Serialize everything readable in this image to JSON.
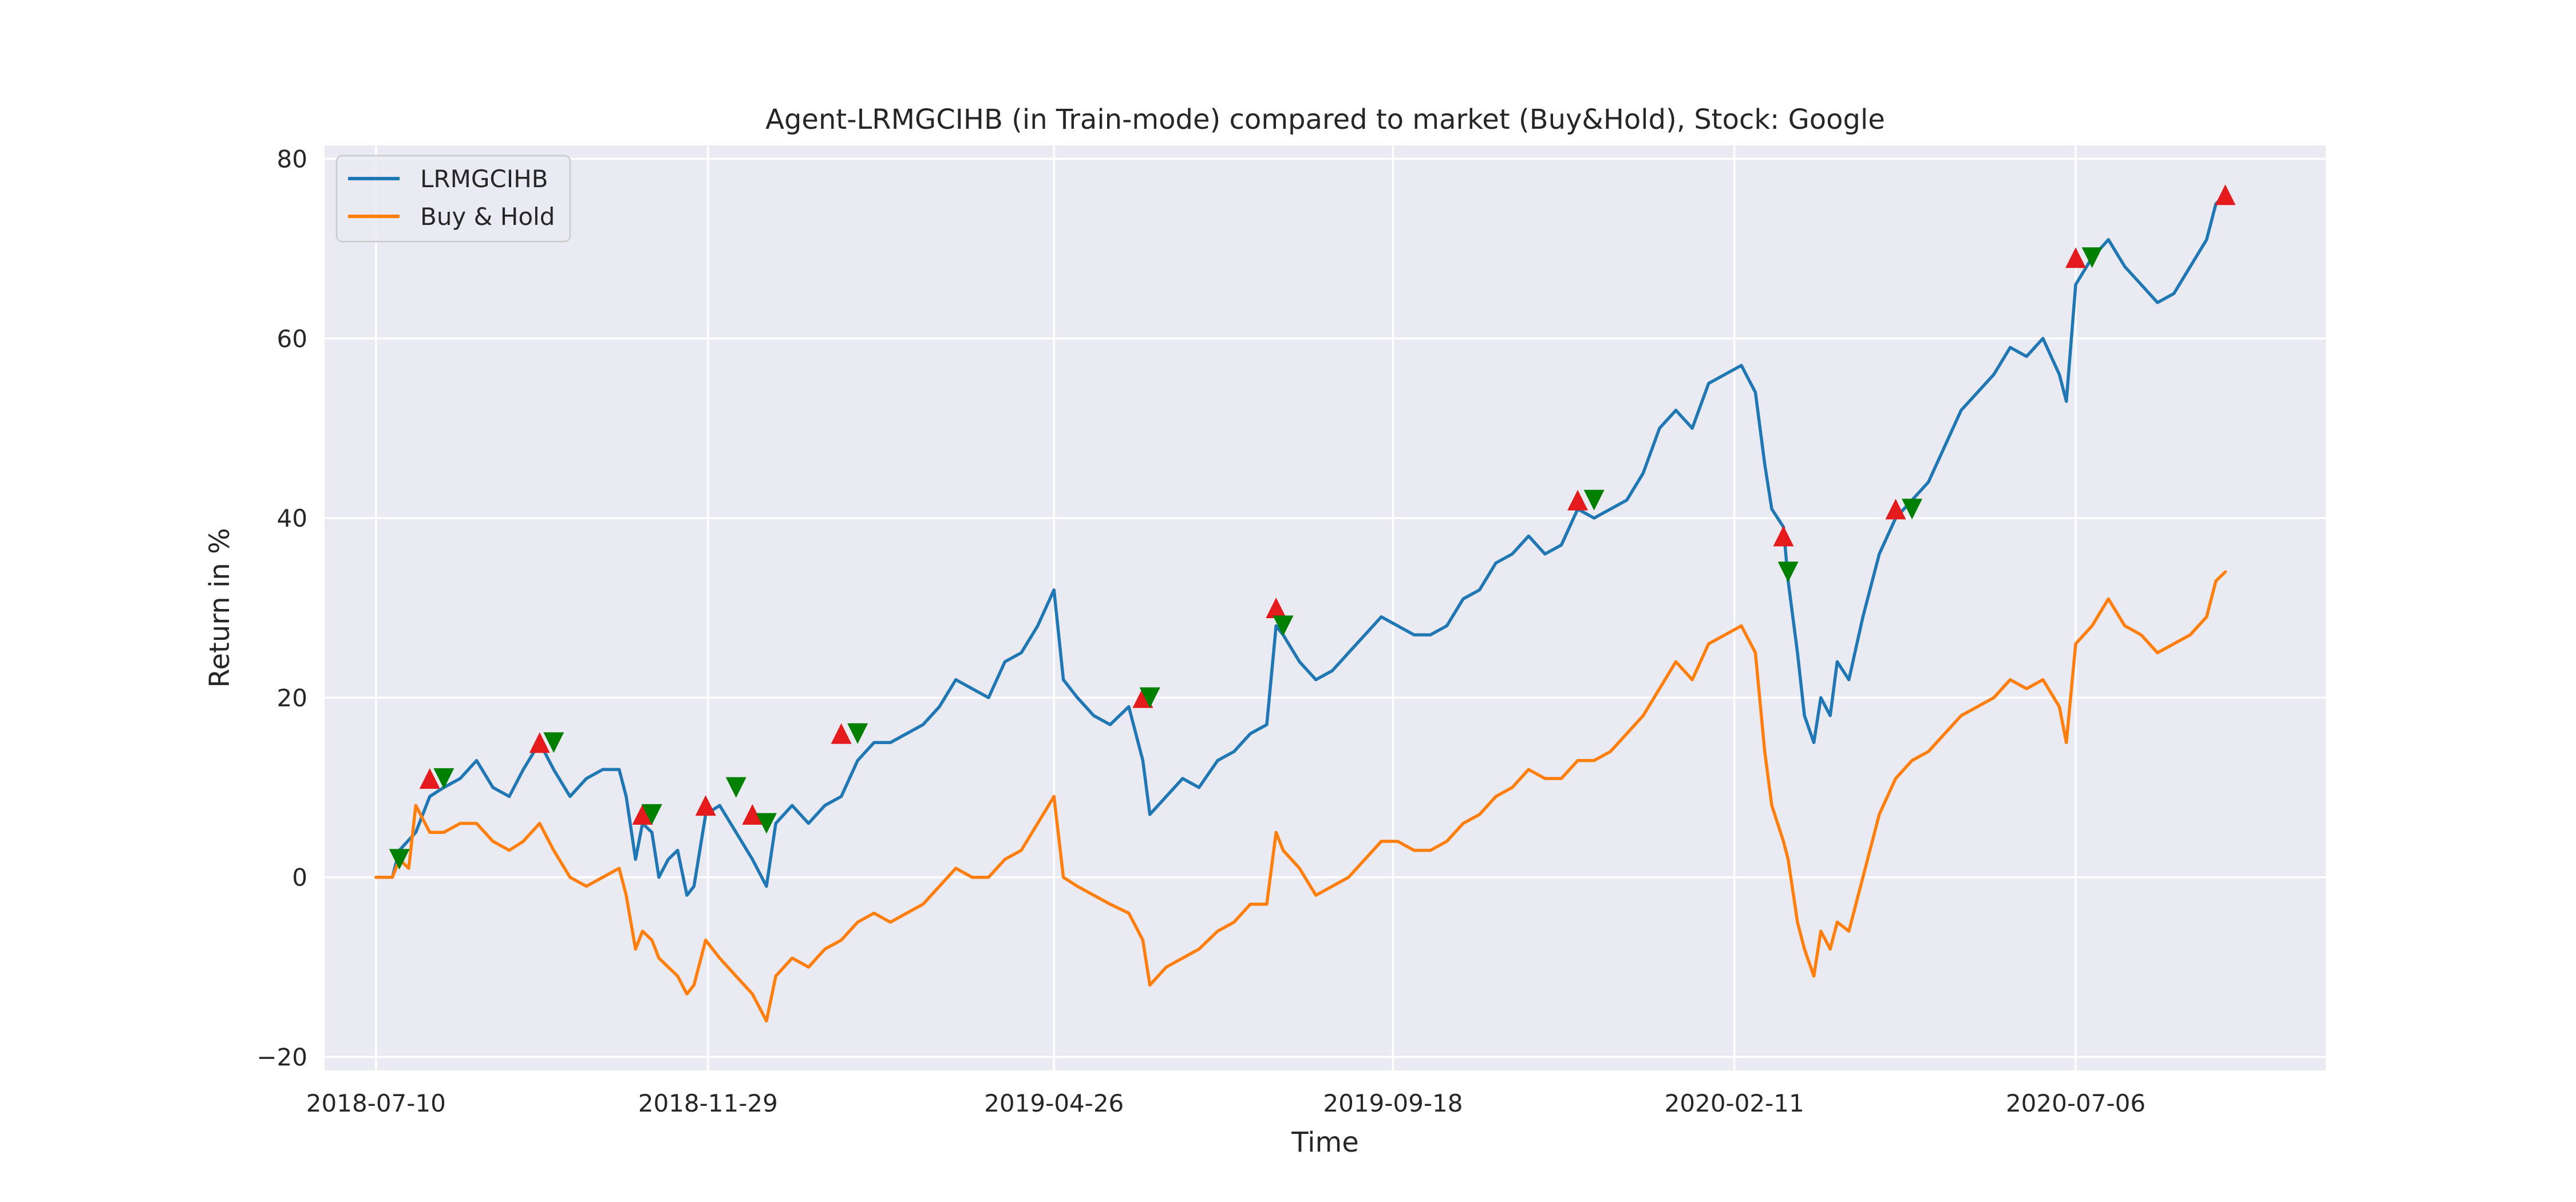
{
  "chart_data": {
    "type": "line",
    "title": "Agent-LRMGCIHB (in Train-mode) compared to market (Buy&Hold), Stock: Google",
    "xlabel": "Time",
    "ylabel": "Return in %",
    "x_tick_labels": [
      "2018-07-10",
      "2018-11-29",
      "2019-04-26",
      "2019-09-18",
      "2020-02-11",
      "2020-07-06"
    ],
    "y_ticks": [
      -20,
      0,
      20,
      40,
      60,
      80
    ],
    "xlim": [
      "2018-06-18",
      "2020-10-21"
    ],
    "ylim": [
      -21.5,
      81.5
    ],
    "grid": true,
    "legend_position": "upper left",
    "colors": {
      "LRMGCIHB": "#1f77b4",
      "Buy & Hold": "#ff7f0e",
      "buy_marker": "#e41a1c",
      "sell_marker": "#008000",
      "background": "#eaeaf2"
    },
    "series": [
      {
        "name": "LRMGCIHB",
        "points": [
          [
            "2018-07-10",
            0
          ],
          [
            "2018-07-17",
            0
          ],
          [
            "2018-07-20",
            3
          ],
          [
            "2018-07-27",
            5
          ],
          [
            "2018-08-02",
            9
          ],
          [
            "2018-08-08",
            10
          ],
          [
            "2018-08-15",
            11
          ],
          [
            "2018-08-22",
            13
          ],
          [
            "2018-08-29",
            10
          ],
          [
            "2018-09-05",
            9
          ],
          [
            "2018-09-11",
            12
          ],
          [
            "2018-09-18",
            15
          ],
          [
            "2018-09-24",
            12
          ],
          [
            "2018-10-01",
            9
          ],
          [
            "2018-10-08",
            11
          ],
          [
            "2018-10-15",
            12
          ],
          [
            "2018-10-22",
            12
          ],
          [
            "2018-10-25",
            9
          ],
          [
            "2018-10-29",
            2
          ],
          [
            "2018-11-01",
            6
          ],
          [
            "2018-11-05",
            5
          ],
          [
            "2018-11-08",
            0
          ],
          [
            "2018-11-12",
            2
          ],
          [
            "2018-11-16",
            3
          ],
          [
            "2018-11-20",
            -2
          ],
          [
            "2018-11-23",
            -1
          ],
          [
            "2018-11-28",
            7
          ],
          [
            "2018-12-04",
            8
          ],
          [
            "2018-12-11",
            5
          ],
          [
            "2018-12-18",
            2
          ],
          [
            "2018-12-24",
            -1
          ],
          [
            "2018-12-28",
            6
          ],
          [
            "2019-01-04",
            8
          ],
          [
            "2019-01-11",
            6
          ],
          [
            "2019-01-18",
            8
          ],
          [
            "2019-01-25",
            9
          ],
          [
            "2019-02-01",
            13
          ],
          [
            "2019-02-08",
            15
          ],
          [
            "2019-02-15",
            15
          ],
          [
            "2019-02-22",
            16
          ],
          [
            "2019-03-01",
            17
          ],
          [
            "2019-03-08",
            19
          ],
          [
            "2019-03-15",
            22
          ],
          [
            "2019-03-22",
            21
          ],
          [
            "2019-03-29",
            20
          ],
          [
            "2019-04-05",
            24
          ],
          [
            "2019-04-12",
            25
          ],
          [
            "2019-04-19",
            28
          ],
          [
            "2019-04-26",
            32
          ],
          [
            "2019-04-30",
            22
          ],
          [
            "2019-05-06",
            20
          ],
          [
            "2019-05-13",
            18
          ],
          [
            "2019-05-20",
            17
          ],
          [
            "2019-05-28",
            19
          ],
          [
            "2019-06-03",
            13
          ],
          [
            "2019-06-06",
            7
          ],
          [
            "2019-06-13",
            9
          ],
          [
            "2019-06-20",
            11
          ],
          [
            "2019-06-27",
            10
          ],
          [
            "2019-07-05",
            13
          ],
          [
            "2019-07-12",
            14
          ],
          [
            "2019-07-19",
            16
          ],
          [
            "2019-07-26",
            17
          ],
          [
            "2019-07-30",
            28
          ],
          [
            "2019-08-02",
            27
          ],
          [
            "2019-08-09",
            24
          ],
          [
            "2019-08-16",
            22
          ],
          [
            "2019-08-23",
            23
          ],
          [
            "2019-08-30",
            25
          ],
          [
            "2019-09-06",
            27
          ],
          [
            "2019-09-13",
            29
          ],
          [
            "2019-09-20",
            28
          ],
          [
            "2019-09-27",
            27
          ],
          [
            "2019-10-04",
            27
          ],
          [
            "2019-10-11",
            28
          ],
          [
            "2019-10-18",
            31
          ],
          [
            "2019-10-25",
            32
          ],
          [
            "2019-11-01",
            35
          ],
          [
            "2019-11-08",
            36
          ],
          [
            "2019-11-15",
            38
          ],
          [
            "2019-11-22",
            36
          ],
          [
            "2019-11-29",
            37
          ],
          [
            "2019-12-06",
            41
          ],
          [
            "2019-12-13",
            40
          ],
          [
            "2019-12-20",
            41
          ],
          [
            "2019-12-27",
            42
          ],
          [
            "2020-01-03",
            45
          ],
          [
            "2020-01-10",
            50
          ],
          [
            "2020-01-17",
            52
          ],
          [
            "2020-01-24",
            50
          ],
          [
            "2020-01-31",
            55
          ],
          [
            "2020-02-07",
            56
          ],
          [
            "2020-02-14",
            57
          ],
          [
            "2020-02-20",
            54
          ],
          [
            "2020-02-24",
            46
          ],
          [
            "2020-02-27",
            41
          ],
          [
            "2020-03-03",
            39
          ],
          [
            "2020-03-05",
            33
          ],
          [
            "2020-03-09",
            25
          ],
          [
            "2020-03-12",
            18
          ],
          [
            "2020-03-16",
            15
          ],
          [
            "2020-03-19",
            20
          ],
          [
            "2020-03-23",
            18
          ],
          [
            "2020-03-26",
            24
          ],
          [
            "2020-03-31",
            22
          ],
          [
            "2020-04-06",
            29
          ],
          [
            "2020-04-13",
            36
          ],
          [
            "2020-04-20",
            40
          ],
          [
            "2020-04-27",
            42
          ],
          [
            "2020-05-04",
            44
          ],
          [
            "2020-05-11",
            48
          ],
          [
            "2020-05-18",
            52
          ],
          [
            "2020-05-25",
            54
          ],
          [
            "2020-06-01",
            56
          ],
          [
            "2020-06-08",
            59
          ],
          [
            "2020-06-15",
            58
          ],
          [
            "2020-06-22",
            60
          ],
          [
            "2020-06-29",
            56
          ],
          [
            "2020-07-02",
            53
          ],
          [
            "2020-07-06",
            66
          ],
          [
            "2020-07-13",
            69
          ],
          [
            "2020-07-20",
            71
          ],
          [
            "2020-07-27",
            68
          ],
          [
            "2020-08-03",
            66
          ],
          [
            "2020-08-10",
            64
          ],
          [
            "2020-08-17",
            65
          ],
          [
            "2020-08-24",
            68
          ],
          [
            "2020-08-31",
            71
          ],
          [
            "2020-09-04",
            75
          ],
          [
            "2020-09-08",
            76
          ]
        ]
      },
      {
        "name": "Buy & Hold",
        "points": [
          [
            "2018-07-10",
            0
          ],
          [
            "2018-07-17",
            0
          ],
          [
            "2018-07-20",
            2
          ],
          [
            "2018-07-24",
            1
          ],
          [
            "2018-07-27",
            8
          ],
          [
            "2018-08-02",
            5
          ],
          [
            "2018-08-08",
            5
          ],
          [
            "2018-08-15",
            6
          ],
          [
            "2018-08-22",
            6
          ],
          [
            "2018-08-29",
            4
          ],
          [
            "2018-09-05",
            3
          ],
          [
            "2018-09-11",
            4
          ],
          [
            "2018-09-18",
            6
          ],
          [
            "2018-09-24",
            3
          ],
          [
            "2018-10-01",
            0
          ],
          [
            "2018-10-08",
            -1
          ],
          [
            "2018-10-15",
            0
          ],
          [
            "2018-10-22",
            1
          ],
          [
            "2018-10-25",
            -2
          ],
          [
            "2018-10-29",
            -8
          ],
          [
            "2018-11-01",
            -6
          ],
          [
            "2018-11-05",
            -7
          ],
          [
            "2018-11-08",
            -9
          ],
          [
            "2018-11-12",
            -10
          ],
          [
            "2018-11-16",
            -11
          ],
          [
            "2018-11-20",
            -13
          ],
          [
            "2018-11-23",
            -12
          ],
          [
            "2018-11-28",
            -7
          ],
          [
            "2018-12-04",
            -9
          ],
          [
            "2018-12-11",
            -11
          ],
          [
            "2018-12-18",
            -13
          ],
          [
            "2018-12-24",
            -16
          ],
          [
            "2018-12-28",
            -11
          ],
          [
            "2019-01-04",
            -9
          ],
          [
            "2019-01-11",
            -10
          ],
          [
            "2019-01-18",
            -8
          ],
          [
            "2019-01-25",
            -7
          ],
          [
            "2019-02-01",
            -5
          ],
          [
            "2019-02-08",
            -4
          ],
          [
            "2019-02-15",
            -5
          ],
          [
            "2019-02-22",
            -4
          ],
          [
            "2019-03-01",
            -3
          ],
          [
            "2019-03-08",
            -1
          ],
          [
            "2019-03-15",
            1
          ],
          [
            "2019-03-22",
            0
          ],
          [
            "2019-03-29",
            0
          ],
          [
            "2019-04-05",
            2
          ],
          [
            "2019-04-12",
            3
          ],
          [
            "2019-04-19",
            6
          ],
          [
            "2019-04-26",
            9
          ],
          [
            "2019-04-30",
            0
          ],
          [
            "2019-05-06",
            -1
          ],
          [
            "2019-05-13",
            -2
          ],
          [
            "2019-05-20",
            -3
          ],
          [
            "2019-05-28",
            -4
          ],
          [
            "2019-06-03",
            -7
          ],
          [
            "2019-06-06",
            -12
          ],
          [
            "2019-06-13",
            -10
          ],
          [
            "2019-06-20",
            -9
          ],
          [
            "2019-06-27",
            -8
          ],
          [
            "2019-07-05",
            -6
          ],
          [
            "2019-07-12",
            -5
          ],
          [
            "2019-07-19",
            -3
          ],
          [
            "2019-07-26",
            -3
          ],
          [
            "2019-07-30",
            5
          ],
          [
            "2019-08-02",
            3
          ],
          [
            "2019-08-09",
            1
          ],
          [
            "2019-08-16",
            -2
          ],
          [
            "2019-08-23",
            -1
          ],
          [
            "2019-08-30",
            0
          ],
          [
            "2019-09-06",
            2
          ],
          [
            "2019-09-13",
            4
          ],
          [
            "2019-09-20",
            4
          ],
          [
            "2019-09-27",
            3
          ],
          [
            "2019-10-04",
            3
          ],
          [
            "2019-10-11",
            4
          ],
          [
            "2019-10-18",
            6
          ],
          [
            "2019-10-25",
            7
          ],
          [
            "2019-11-01",
            9
          ],
          [
            "2019-11-08",
            10
          ],
          [
            "2019-11-15",
            12
          ],
          [
            "2019-11-22",
            11
          ],
          [
            "2019-11-29",
            11
          ],
          [
            "2019-12-06",
            13
          ],
          [
            "2019-12-13",
            13
          ],
          [
            "2019-12-20",
            14
          ],
          [
            "2019-12-27",
            16
          ],
          [
            "2020-01-03",
            18
          ],
          [
            "2020-01-10",
            21
          ],
          [
            "2020-01-17",
            24
          ],
          [
            "2020-01-24",
            22
          ],
          [
            "2020-01-31",
            26
          ],
          [
            "2020-02-07",
            27
          ],
          [
            "2020-02-14",
            28
          ],
          [
            "2020-02-20",
            25
          ],
          [
            "2020-02-24",
            14
          ],
          [
            "2020-02-27",
            8
          ],
          [
            "2020-03-03",
            4
          ],
          [
            "2020-03-05",
            2
          ],
          [
            "2020-03-09",
            -5
          ],
          [
            "2020-03-12",
            -8
          ],
          [
            "2020-03-16",
            -11
          ],
          [
            "2020-03-19",
            -6
          ],
          [
            "2020-03-23",
            -8
          ],
          [
            "2020-03-26",
            -5
          ],
          [
            "2020-03-31",
            -6
          ],
          [
            "2020-04-06",
            0
          ],
          [
            "2020-04-13",
            7
          ],
          [
            "2020-04-20",
            11
          ],
          [
            "2020-04-27",
            13
          ],
          [
            "2020-05-04",
            14
          ],
          [
            "2020-05-11",
            16
          ],
          [
            "2020-05-18",
            18
          ],
          [
            "2020-05-25",
            19
          ],
          [
            "2020-06-01",
            20
          ],
          [
            "2020-06-08",
            22
          ],
          [
            "2020-06-15",
            21
          ],
          [
            "2020-06-22",
            22
          ],
          [
            "2020-06-29",
            19
          ],
          [
            "2020-07-02",
            15
          ],
          [
            "2020-07-06",
            26
          ],
          [
            "2020-07-13",
            28
          ],
          [
            "2020-07-20",
            31
          ],
          [
            "2020-07-27",
            28
          ],
          [
            "2020-08-03",
            27
          ],
          [
            "2020-08-10",
            25
          ],
          [
            "2020-08-17",
            26
          ],
          [
            "2020-08-24",
            27
          ],
          [
            "2020-08-31",
            29
          ],
          [
            "2020-09-04",
            33
          ],
          [
            "2020-09-08",
            34
          ]
        ]
      }
    ],
    "buy_markers": [
      [
        "2018-08-02",
        11
      ],
      [
        "2018-09-18",
        15
      ],
      [
        "2018-11-01",
        7
      ],
      [
        "2018-11-28",
        8
      ],
      [
        "2018-12-18",
        7
      ],
      [
        "2019-01-25",
        16
      ],
      [
        "2019-06-03",
        20
      ],
      [
        "2019-07-30",
        30
      ],
      [
        "2019-12-06",
        42
      ],
      [
        "2020-03-03",
        38
      ],
      [
        "2020-04-20",
        41
      ],
      [
        "2020-07-06",
        69
      ],
      [
        "2020-09-08",
        76
      ]
    ],
    "sell_markers": [
      [
        "2018-07-20",
        2
      ],
      [
        "2018-08-08",
        11
      ],
      [
        "2018-09-24",
        15
      ],
      [
        "2018-11-05",
        7
      ],
      [
        "2018-12-11",
        10
      ],
      [
        "2018-12-24",
        6
      ],
      [
        "2019-02-01",
        16
      ],
      [
        "2019-06-06",
        20
      ],
      [
        "2019-08-02",
        28
      ],
      [
        "2019-12-13",
        42
      ],
      [
        "2020-03-05",
        34
      ],
      [
        "2020-04-27",
        41
      ],
      [
        "2020-07-13",
        69
      ]
    ]
  }
}
